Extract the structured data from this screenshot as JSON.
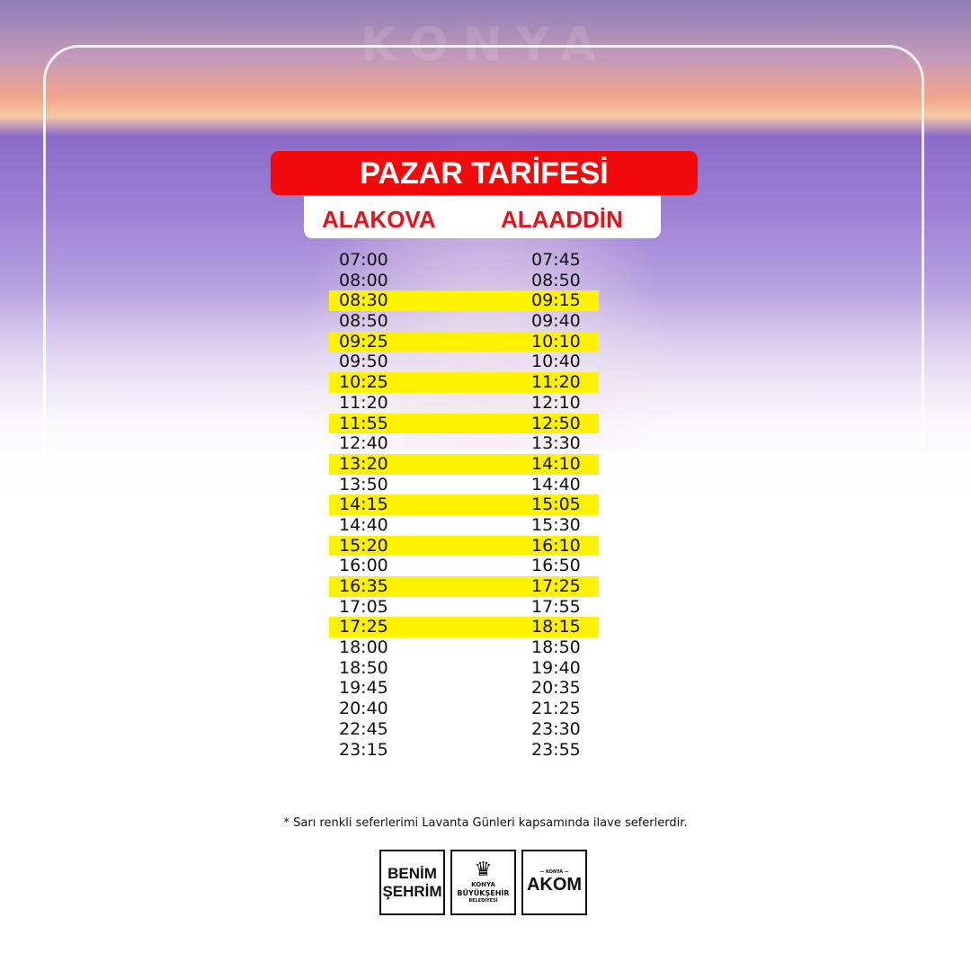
{
  "watermark": "KONYA",
  "title": "PAZAR TARİFESİ",
  "columns": [
    "ALAKOVA",
    "ALAADDİN"
  ],
  "highlight_color": "#fff200",
  "accent_color": "#f20a0a",
  "schedule": [
    {
      "from": "07:00",
      "to": "07:45",
      "extra": false
    },
    {
      "from": "08:00",
      "to": "08:50",
      "extra": false
    },
    {
      "from": "08:30",
      "to": "09:15",
      "extra": true
    },
    {
      "from": "08:50",
      "to": "09:40",
      "extra": false
    },
    {
      "from": "09:25",
      "to": "10:10",
      "extra": true
    },
    {
      "from": "09:50",
      "to": "10:40",
      "extra": false
    },
    {
      "from": "10:25",
      "to": "11:20",
      "extra": true
    },
    {
      "from": "11:20",
      "to": "12:10",
      "extra": false
    },
    {
      "from": "11:55",
      "to": "12:50",
      "extra": true
    },
    {
      "from": "12:40",
      "to": "13:30",
      "extra": false
    },
    {
      "from": "13:20",
      "to": "14:10",
      "extra": true
    },
    {
      "from": "13:50",
      "to": "14:40",
      "extra": false
    },
    {
      "from": "14:15",
      "to": "15:05",
      "extra": true
    },
    {
      "from": "14:40",
      "to": "15:30",
      "extra": false
    },
    {
      "from": "15:20",
      "to": "16:10",
      "extra": true
    },
    {
      "from": "16:00",
      "to": "16:50",
      "extra": false
    },
    {
      "from": "16:35",
      "to": "17:25",
      "extra": true
    },
    {
      "from": "17:05",
      "to": "17:55",
      "extra": false
    },
    {
      "from": "17:25",
      "to": "18:15",
      "extra": true
    },
    {
      "from": "18:00",
      "to": "18:50",
      "extra": false
    },
    {
      "from": "18:50",
      "to": "19:40",
      "extra": false
    },
    {
      "from": "19:45",
      "to": "20:35",
      "extra": false
    },
    {
      "from": "20:40",
      "to": "21:25",
      "extra": false
    },
    {
      "from": "22:45",
      "to": "23:30",
      "extra": false
    },
    {
      "from": "23:15",
      "to": "23:55",
      "extra": false
    }
  ],
  "footnote": "* Sarı renkli seferlerimi Lavanta Günleri kapsamında ilave seferlerdir.",
  "logos": {
    "benim": [
      "BENİM",
      "ŞEHRİM"
    ],
    "kbb": [
      "KONYA",
      "BÜYÜKŞEHİR",
      "BELEDİYESİ"
    ],
    "akom": {
      "top": "— KONYA —",
      "main": "AKOM"
    }
  }
}
